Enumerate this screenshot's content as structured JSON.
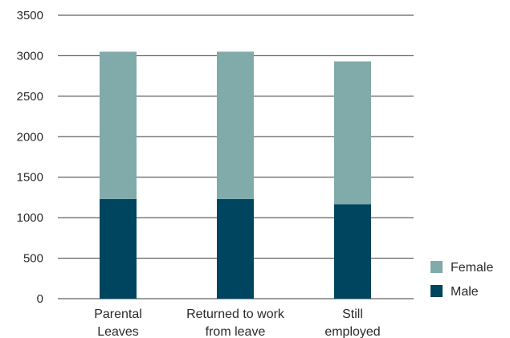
{
  "chart_data": {
    "type": "bar",
    "stacked": true,
    "categories": [
      [
        "Parental",
        "Leaves"
      ],
      [
        "Returned to work",
        "from leave"
      ],
      [
        "Still",
        "employed"
      ]
    ],
    "series": [
      {
        "name": "Male",
        "color": "#00455f",
        "values": [
          1230,
          1230,
          1165
        ]
      },
      {
        "name": "Female",
        "color": "#81aaaa",
        "values": [
          1820,
          1820,
          1765
        ]
      }
    ],
    "ylim": [
      0,
      3500
    ],
    "yticks": [
      0,
      500,
      1000,
      1500,
      2000,
      2500,
      3000,
      3500
    ],
    "grid": true,
    "legend_position": "bottom-right",
    "legend_order": [
      "Female",
      "Male"
    ],
    "title": "",
    "xlabel": "",
    "ylabel": ""
  }
}
